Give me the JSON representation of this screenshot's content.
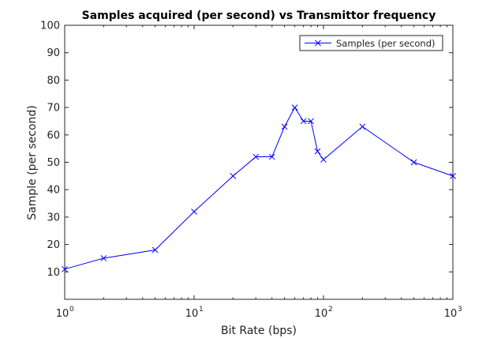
{
  "chart_data": {
    "type": "line",
    "title": "Samples acquired (per second) vs Transmittor frequency",
    "xlabel": "Bit Rate (bps)",
    "ylabel": "Sample (per second)",
    "xscale": "log",
    "xlim": [
      1,
      1000
    ],
    "ylim": [
      0,
      100
    ],
    "yticks": [
      10,
      20,
      30,
      40,
      50,
      60,
      70,
      80,
      90,
      100
    ],
    "xticks": [
      {
        "value": 1,
        "base": "10",
        "exp": "0"
      },
      {
        "value": 10,
        "base": "10",
        "exp": "1"
      },
      {
        "value": 100,
        "base": "10",
        "exp": "2"
      },
      {
        "value": 1000,
        "base": "10",
        "exp": "3"
      }
    ],
    "grid": false,
    "legend_position": "top-right",
    "series": [
      {
        "name": "Samples (per second)",
        "color": "#0000ff",
        "marker": "x",
        "x": [
          1,
          2,
          5,
          10,
          20,
          30,
          40,
          50,
          60,
          70,
          80,
          90,
          100,
          200,
          500,
          1000
        ],
        "y": [
          11,
          15,
          18,
          32,
          45,
          52,
          52,
          63,
          70,
          65,
          65,
          54,
          51,
          63,
          50,
          45
        ]
      }
    ]
  }
}
